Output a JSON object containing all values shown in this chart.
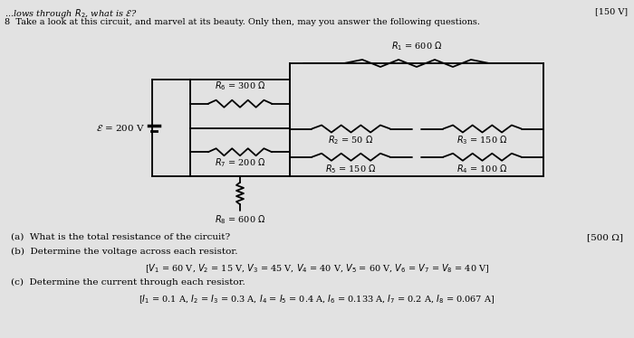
{
  "bg_color": "#c8c8c8",
  "paper_color": "#e2e2e2",
  "text_color": "#000000",
  "top_text_italic": "...lows through ",
  "top_right": "[150 V]",
  "q8_text": "8  Take a look at this circuit, and marvel at its beauty. Only then, may you answer the following questions.",
  "q_a": "(a)  What is the total resistance of the circuit?",
  "q_a_ans": "[500 Ω]",
  "q_b": "(b)  Determine the voltage across each resistor.",
  "q_b_ans": "[$V_1$ = 60 V, $V_2$ = 15 V, $V_3$ = 45 V, $V_4$ = 40 V, $V_5$ = 60 V, $V_6$ = $V_7$ = $V_8$ = 40 V]",
  "q_c": "(c)  Determine the current through each resistor.",
  "q_c_ans": "[$I_1$ = 0.1 A, $I_2$ = $I_3$ = 0.3 A, $I_4$ = $I_5$ = 0.4 A, $I_6$ = 0.133 A, $I_7$ = 0.2 A, $I_8$ = 0.067 A]",
  "emf_label": "$\\mathcal{E}$ = 200 V",
  "R1_label": "$R_1$ = 600 $\\Omega$",
  "R2_label": "$R_2$ = 50 $\\Omega$",
  "R3_label": "$R_3$ = 150 $\\Omega$",
  "R4_label": "$R_4$ = 100 $\\Omega$",
  "R5_label": "$R_5$ = 150 $\\Omega$",
  "R6_label": "$R_6$ = 300 $\\Omega$",
  "R7_label": "$R_7$ = 200 $\\Omega$",
  "R8_label": "$R_8$ = 600 $\\Omega$",
  "lw": 1.3,
  "fs": 7.5,
  "fs_small": 7.0
}
